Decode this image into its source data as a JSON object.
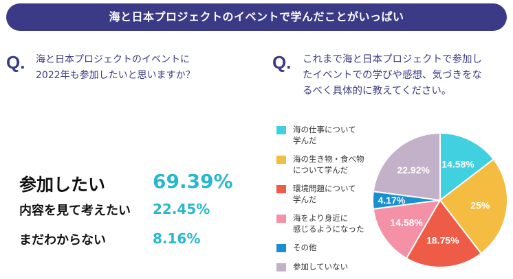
{
  "banner": {
    "title": "海と日本プロジェクトのイベントで学んだことがいっぱい"
  },
  "q_mark": "Q.",
  "left_question": {
    "line1": "海と日本プロジェクトのイベントに",
    "line2": "2022年も参加したいと思いますか？"
  },
  "results": [
    {
      "label": "参加したい",
      "pct": "69.39%"
    },
    {
      "label": "内容を見て考えたい",
      "pct": "22.45%"
    },
    {
      "label": "まだわからない",
      "pct": "8.16%"
    }
  ],
  "right_question": {
    "line1": "これまで海と日本プロジェクトで参加し",
    "line2": "たイベントでの学びや感想、気づきをな",
    "line3": "るべく具体的に教えてください。"
  },
  "legend": [
    {
      "line1": "海の仕事について",
      "line2": "学んだ"
    },
    {
      "line1": "海の生き物・食べ物",
      "line2": "について学んだ"
    },
    {
      "line1": "環境問題について",
      "line2": "学んだ"
    },
    {
      "line1": "海をより身近に",
      "line2": "感じるようになった"
    },
    {
      "line1": "その他",
      "line2": ""
    },
    {
      "line1": "参加していない",
      "line2": ""
    }
  ],
  "chart_data": {
    "type": "pie",
    "title": "これまで海と日本プロジェクトで参加したイベントでの学びや感想、気づき",
    "categories": [
      "海の仕事について学んだ",
      "海の生き物・食べ物について学んだ",
      "環境問題について学んだ",
      "海をより身近に感じるようになった",
      "その他",
      "参加していない"
    ],
    "values": [
      14.58,
      25,
      18.75,
      14.58,
      4.17,
      22.92
    ],
    "labels": [
      "14.58%",
      "25%",
      "18.75%",
      "14.58%",
      "4.17%",
      "22.92%"
    ],
    "colors": [
      "#40d0e0",
      "#f5bc42",
      "#ee5c47",
      "#f591a7",
      "#1a90d0",
      "#c3b0c9"
    ],
    "legend_position": "left"
  }
}
